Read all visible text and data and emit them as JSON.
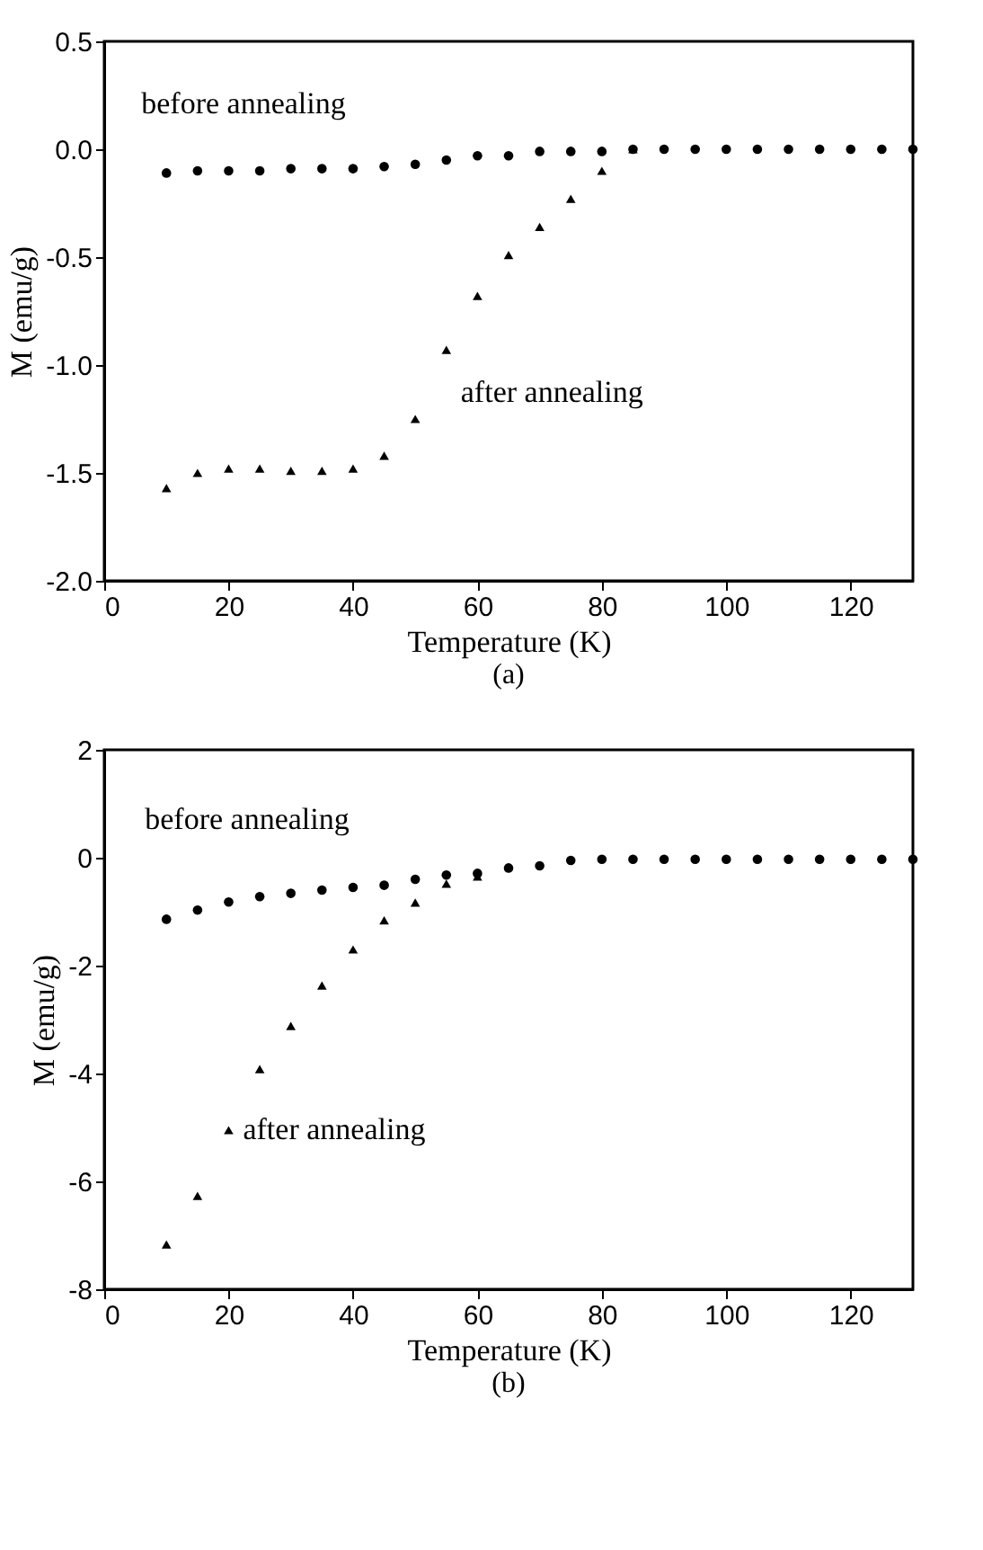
{
  "chart_data": [
    {
      "type": "scatter",
      "xlabel": "Temperature (K)",
      "ylabel": "M (emu/g)",
      "xlim": [
        0,
        130
      ],
      "xticks": [
        0,
        20,
        40,
        60,
        80,
        100,
        120
      ],
      "ylim": [
        -2.0,
        0.5
      ],
      "yticks": [
        {
          "value": -2.0,
          "label": "-2.0"
        },
        {
          "value": -1.5,
          "label": "-1.5"
        },
        {
          "value": -1.0,
          "label": "-1.0"
        },
        {
          "value": -0.5,
          "label": "-0.5"
        },
        {
          "value": 0.0,
          "label": "0.0"
        },
        {
          "value": 0.5,
          "label": "0.5"
        }
      ],
      "grid": false,
      "series": [
        {
          "name": "before annealing",
          "color": "#000000",
          "marker": "circle",
          "x": [
            10,
            15,
            20,
            25,
            30,
            35,
            40,
            45,
            50,
            55,
            60,
            65,
            70,
            75,
            80,
            85,
            90,
            95,
            100,
            105,
            110,
            115,
            120,
            125,
            130
          ],
          "values": [
            -0.11,
            -0.1,
            -0.1,
            -0.1,
            -0.09,
            -0.09,
            -0.09,
            -0.08,
            -0.07,
            -0.05,
            -0.03,
            -0.03,
            -0.01,
            -0.01,
            -0.01,
            0.0,
            0.0,
            0.0,
            0.0,
            0.0,
            0.0,
            0.0,
            0.0,
            0.0,
            0.0
          ]
        },
        {
          "name": "after annealing",
          "color": "#000000",
          "marker": "triangle",
          "x": [
            10,
            15,
            20,
            25,
            30,
            35,
            40,
            45,
            50,
            55,
            60,
            65,
            70,
            75,
            80,
            85
          ],
          "values": [
            -1.57,
            -1.5,
            -1.48,
            -1.48,
            -1.49,
            -1.49,
            -1.48,
            -1.42,
            -1.25,
            -0.93,
            -0.68,
            -0.49,
            -0.36,
            -0.23,
            -0.1,
            0.0
          ]
        }
      ],
      "annotations": [
        "(a)"
      ]
    },
    {
      "type": "scatter",
      "xlabel": "Temperature (K)",
      "ylabel": "M (emu/g)",
      "xlim": [
        0,
        130
      ],
      "xticks": [
        0,
        20,
        40,
        60,
        80,
        100,
        120
      ],
      "ylim": [
        -8,
        2
      ],
      "yticks": [
        -8,
        -6,
        -4,
        -2,
        0,
        2
      ],
      "grid": false,
      "series": [
        {
          "name": "before annealing",
          "color": "#000000",
          "marker": "circle",
          "x": [
            10,
            15,
            20,
            25,
            30,
            35,
            40,
            45,
            50,
            55,
            60,
            65,
            70,
            75,
            80,
            85,
            90,
            95,
            100,
            105,
            110,
            115,
            120,
            125,
            130
          ],
          "values": [
            -1.14,
            -0.97,
            -0.82,
            -0.72,
            -0.66,
            -0.6,
            -0.55,
            -0.51,
            -0.4,
            -0.32,
            -0.29,
            -0.19,
            -0.15,
            -0.05,
            -0.03,
            -0.03,
            -0.03,
            -0.03,
            -0.03,
            -0.03,
            -0.03,
            -0.03,
            -0.03,
            -0.03,
            -0.03
          ]
        },
        {
          "name": "after annealing",
          "color": "#000000",
          "marker": "triangle",
          "x": [
            10,
            15,
            20,
            25,
            30,
            35,
            40,
            45,
            50,
            55,
            60
          ],
          "values": [
            -7.17,
            -6.27,
            -5.05,
            -3.92,
            -3.12,
            -2.37,
            -1.7,
            -1.16,
            -0.83,
            -0.48,
            -0.35
          ]
        }
      ],
      "annotations": [
        "(b)"
      ]
    }
  ]
}
